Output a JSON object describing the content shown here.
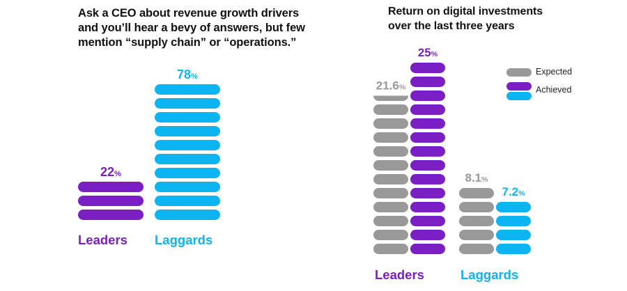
{
  "colors": {
    "purple": "#7a1fc4",
    "cyan": "#0db4f2",
    "gray": "#999999",
    "title": "#111111"
  },
  "chart_data": [
    {
      "type": "bar",
      "title": "Ask a CEO about revenue growth drivers and you'll hear a bevy of answers, but few mention “supply chain” or “operations.”",
      "title_lines": [
        "Ask a CEO about revenue growth drivers",
        "and you’ll hear a bevy of answers, but few",
        "mention “supply chain” or “operations.”"
      ],
      "categories": [
        "Leaders",
        "Laggards"
      ],
      "values": [
        22,
        78
      ],
      "value_labels": [
        "22",
        "78"
      ],
      "unit": "%",
      "category_colors": [
        "purple",
        "cyan"
      ],
      "pill_counts": [
        3,
        10
      ],
      "xlabel": "",
      "ylabel": "",
      "grid": false
    },
    {
      "type": "bar",
      "title": "Return on digital investments over the last three years",
      "title_lines": [
        "Return on digital investments",
        "over the last three years"
      ],
      "categories": [
        "Leaders",
        "Laggards"
      ],
      "series": [
        {
          "name": "Expected",
          "values": [
            21.6,
            8.1
          ],
          "value_labels": [
            "21.6",
            "8.1"
          ],
          "color": "gray",
          "pill_counts": [
            11.5,
            5
          ]
        },
        {
          "name": "Achieved",
          "values": [
            25,
            7.2
          ],
          "value_labels": [
            "25",
            "7.2"
          ],
          "colors": [
            "purple",
            "cyan"
          ],
          "pill_counts": [
            14,
            4
          ]
        }
      ],
      "unit": "%",
      "legend": {
        "position": "top-right",
        "entries": [
          {
            "label": "Expected",
            "swatches": [
              "gray"
            ]
          },
          {
            "label": "Achieved",
            "swatches": [
              "purple",
              "cyan"
            ]
          }
        ]
      },
      "category_label_colors": [
        "purple",
        "cyan"
      ],
      "xlabel": "",
      "ylabel": "",
      "grid": false
    }
  ]
}
